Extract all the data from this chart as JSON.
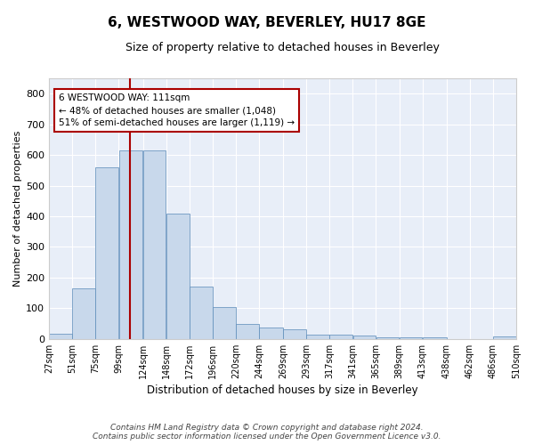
{
  "title": "6, WESTWOOD WAY, BEVERLEY, HU17 8GE",
  "subtitle": "Size of property relative to detached houses in Beverley",
  "xlabel": "Distribution of detached houses by size in Beverley",
  "ylabel": "Number of detached properties",
  "bar_color": "#c8d8eb",
  "bar_edge_color": "#5a8ab8",
  "background_color": "#e8eef8",
  "grid_color": "white",
  "vline_x": 111,
  "vline_color": "#aa0000",
  "bins": [
    27,
    51,
    75,
    99,
    124,
    148,
    172,
    196,
    220,
    244,
    269,
    293,
    317,
    341,
    365,
    389,
    413,
    438,
    462,
    486,
    510
  ],
  "bar_heights": [
    18,
    165,
    560,
    615,
    615,
    410,
    170,
    103,
    50,
    38,
    30,
    15,
    13,
    10,
    6,
    6,
    6,
    0,
    0,
    8
  ],
  "annotation_text": "6 WESTWOOD WAY: 111sqm\n← 48% of detached houses are smaller (1,048)\n51% of semi-detached houses are larger (1,119) →",
  "annotation_box_color": "white",
  "annotation_box_edgecolor": "#aa0000",
  "footer_text": "Contains HM Land Registry data © Crown copyright and database right 2024.\nContains public sector information licensed under the Open Government Licence v3.0.",
  "ylim": [
    0,
    850
  ],
  "yticks": [
    0,
    100,
    200,
    300,
    400,
    500,
    600,
    700,
    800
  ],
  "title_fontsize": 11,
  "subtitle_fontsize": 9
}
